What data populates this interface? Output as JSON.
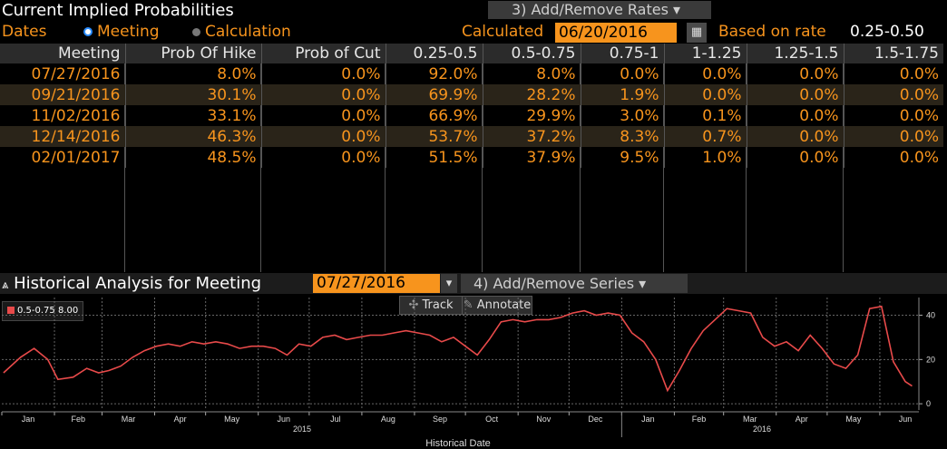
{
  "header": {
    "title": "Current Implied Probabilities",
    "add_remove_rates": "3) Add/Remove Rates ▾"
  },
  "controls": {
    "dates_label": "Dates",
    "meeting_label": "Meeting",
    "calculation_label": "Calculation",
    "calculated_label": "Calculated",
    "calculated_date": "06/20/2016",
    "based_on_label": "Based on rate",
    "based_on_value": "0.25-0.50"
  },
  "table": {
    "columns": [
      "Meeting",
      "Prob Of Hike",
      "Prob of Cut",
      "0.25-0.5",
      "0.5-0.75",
      "0.75-1",
      "1-1.25",
      "1.25-1.5",
      "1.5-1.75"
    ],
    "rows": [
      [
        "07/27/2016",
        "8.0%",
        "0.0%",
        "92.0%",
        "8.0%",
        "0.0%",
        "0.0%",
        "0.0%",
        "0.0%"
      ],
      [
        "09/21/2016",
        "30.1%",
        "0.0%",
        "69.9%",
        "28.2%",
        "1.9%",
        "0.0%",
        "0.0%",
        "0.0%"
      ],
      [
        "11/02/2016",
        "33.1%",
        "0.0%",
        "66.9%",
        "29.9%",
        "3.0%",
        "0.1%",
        "0.0%",
        "0.0%"
      ],
      [
        "12/14/2016",
        "46.3%",
        "0.0%",
        "53.7%",
        "37.2%",
        "8.3%",
        "0.7%",
        "0.0%",
        "0.0%"
      ],
      [
        "02/01/2017",
        "48.5%",
        "0.0%",
        "51.5%",
        "37.9%",
        "9.5%",
        "1.0%",
        "0.0%",
        "0.0%"
      ]
    ]
  },
  "historical": {
    "title": "Historical Analysis for Meeting",
    "meeting_date": "07/27/2016",
    "add_remove_series": "4) Add/Remove Series ▾",
    "track_label": "Track",
    "annotate_label": "Annotate",
    "legend_series": "0.5-0.75",
    "legend_value": "8.00"
  },
  "colors": {
    "accent": "#f7941d",
    "series": "#e84a4a",
    "grid": "#666666"
  },
  "chart_data": {
    "type": "line",
    "xlabel": "Historical Date",
    "ylabel": "",
    "x_tick_labels": [
      "Jan",
      "Feb",
      "Mar",
      "Apr",
      "May",
      "Jun",
      "Jul",
      "Aug",
      "Sep",
      "Oct",
      "Nov",
      "Dec",
      "Jan",
      "Feb",
      "Mar",
      "Apr",
      "May",
      "Jun"
    ],
    "year_labels": [
      "2015",
      "2016"
    ],
    "y_ticks": [
      0,
      20,
      40
    ],
    "ylim": [
      -2,
      48
    ],
    "grid": true,
    "series": [
      {
        "name": "0.5-0.75",
        "x": [
          "2015-01-02",
          "2015-01-12",
          "2015-01-20",
          "2015-01-28",
          "2015-02-03",
          "2015-02-12",
          "2015-02-20",
          "2015-02-27",
          "2015-03-05",
          "2015-03-12",
          "2015-03-19",
          "2015-03-26",
          "2015-04-02",
          "2015-04-09",
          "2015-04-16",
          "2015-04-23",
          "2015-04-30",
          "2015-05-07",
          "2015-05-14",
          "2015-05-21",
          "2015-05-28",
          "2015-06-04",
          "2015-06-11",
          "2015-06-18",
          "2015-06-25",
          "2015-07-02",
          "2015-07-09",
          "2015-07-16",
          "2015-07-23",
          "2015-07-30",
          "2015-08-06",
          "2015-08-13",
          "2015-08-20",
          "2015-08-27",
          "2015-09-03",
          "2015-09-10",
          "2015-09-17",
          "2015-09-24",
          "2015-10-01",
          "2015-10-08",
          "2015-10-15",
          "2015-10-22",
          "2015-10-29",
          "2015-11-05",
          "2015-11-12",
          "2015-11-19",
          "2015-11-26",
          "2015-12-03",
          "2015-12-10",
          "2015-12-17",
          "2015-12-24",
          "2015-12-31",
          "2016-01-07",
          "2016-01-14",
          "2016-01-21",
          "2016-01-28",
          "2016-02-04",
          "2016-02-11",
          "2016-02-18",
          "2016-02-25",
          "2016-03-03",
          "2016-03-10",
          "2016-03-17",
          "2016-03-24",
          "2016-03-31",
          "2016-04-07",
          "2016-04-14",
          "2016-04-21",
          "2016-04-28",
          "2016-05-05",
          "2016-05-12",
          "2016-05-19",
          "2016-05-26",
          "2016-06-02",
          "2016-06-09",
          "2016-06-16",
          "2016-06-20"
        ],
        "values": [
          14,
          21,
          25,
          20,
          11,
          12,
          16,
          14,
          15,
          17,
          21,
          24,
          26,
          27,
          26,
          28,
          27,
          28,
          27,
          25,
          26,
          26,
          25,
          22,
          27,
          26,
          30,
          31,
          29,
          30,
          31,
          31,
          32,
          33,
          32,
          31,
          28,
          30,
          26,
          22,
          29,
          37,
          38,
          37,
          38,
          38,
          39,
          41,
          42,
          40,
          41,
          40,
          32,
          28,
          20,
          6,
          15,
          25,
          33,
          38,
          43,
          42,
          41,
          30,
          26,
          28,
          24,
          31,
          25,
          18,
          16,
          22,
          43,
          44,
          19,
          10,
          8
        ]
      }
    ]
  }
}
